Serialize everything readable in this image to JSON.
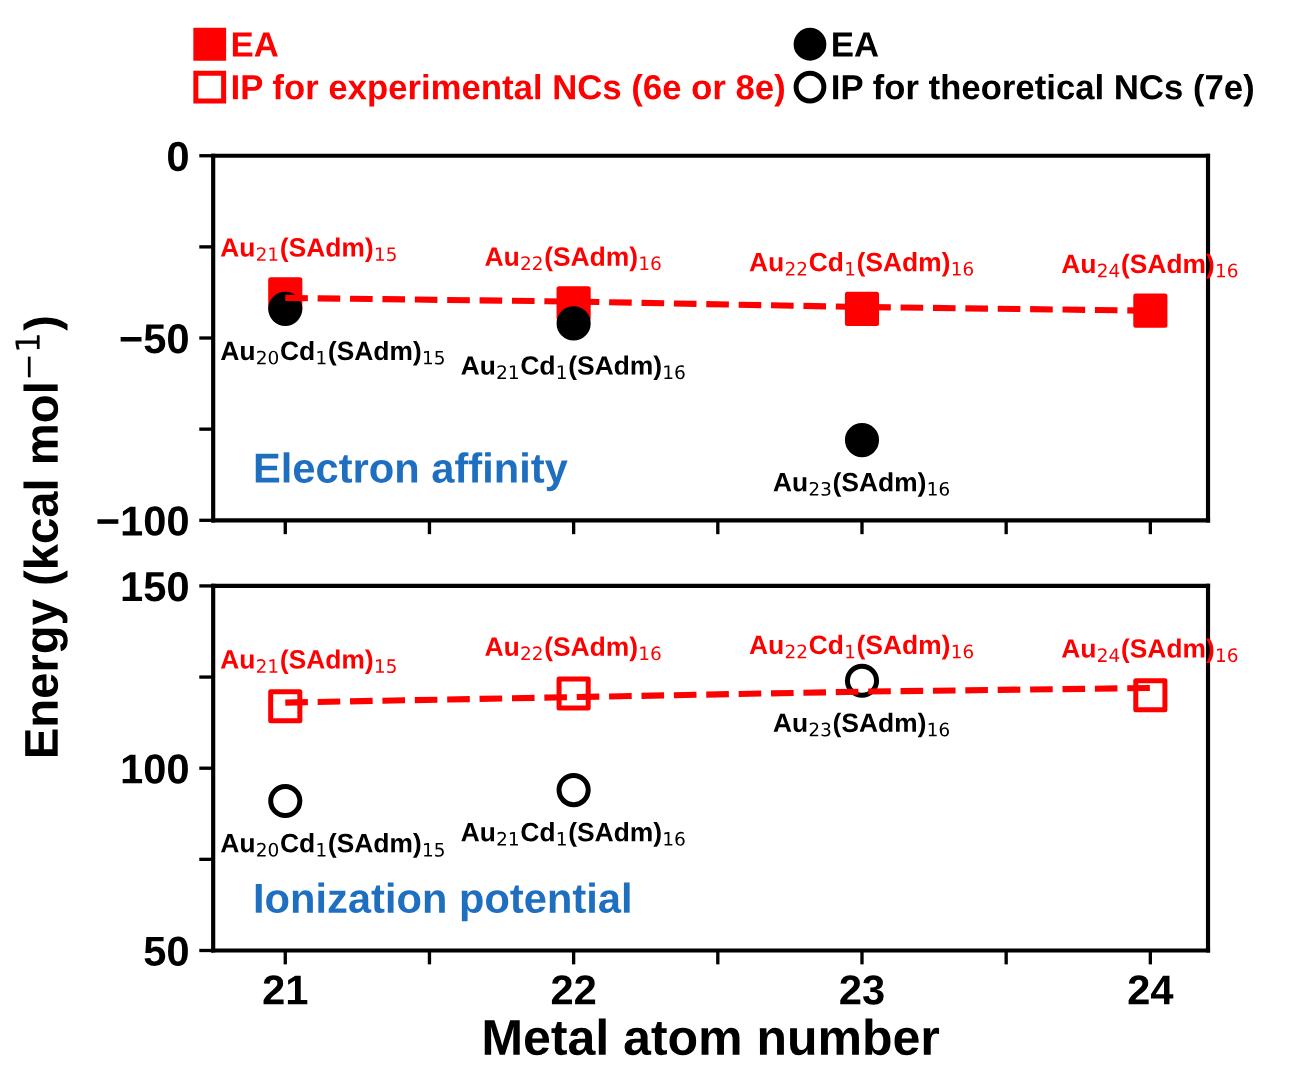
{
  "chart_data": [
    {
      "type": "scatter",
      "ylabel": "Energy (kcal mol$^{−1}$)",
      "x": [
        21,
        22,
        23,
        24
      ],
      "xlim": [
        20.75,
        24.2
      ],
      "xticks": [
        21,
        {
          "value": 21.5,
          "label": null
        },
        22,
        {
          "value": 22.5,
          "label": null
        },
        23,
        {
          "value": 23.5,
          "label": null
        },
        24
      ],
      "ylim": [
        -100,
        0
      ],
      "yticks": [
        -100,
        {
          "value": -75,
          "label": null
        },
        -50,
        {
          "value": -25,
          "label": null
        },
        0
      ],
      "tick_labels": "y",
      "legend": "top",
      "series": [
        {
          "name": "EA",
          "color": "#ff0000",
          "marker": "square",
          "values": [
            -38,
            -40.5,
            -42,
            -42.5
          ],
          "value_labels": [
            "Au$_{21}$(SAdm)$_{15}$",
            "Au$_{22}$(SAdm)$_{16}$",
            "Au$_{22}$Cd$_{1}$(SAdm)$_{16}$",
            "Au$_{24}$(SAdm)$_{16}$"
          ]
        },
        {
          "name": "EA",
          "color": "#000000",
          "marker": "circle",
          "values": [
            -42,
            -46,
            -78,
            null
          ],
          "value_labels": [
            "Au$_{20}$Cd$_{1}$(SAdm)$_{15}$",
            "Au$_{21}$Cd$_{1}$(SAdm)$_{16}$",
            "Au$_{23}$(SAdm)$_{16}$",
            null
          ]
        },
        {
          "type": "line",
          "color": "#ff0000",
          "line_style": "dashed",
          "marker": "none",
          "values": [
            -39,
            -40,
            -41.5,
            -42.5
          ]
        }
      ],
      "annotations": [
        "Electron affinity"
      ]
    },
    {
      "type": "scatter",
      "xlabel": "Metal atom number",
      "x": [
        21,
        22,
        23,
        24
      ],
      "xlim": [
        20.75,
        24.2
      ],
      "xticks": [
        21,
        {
          "value": 21.5,
          "label": null
        },
        22,
        {
          "value": 22.5,
          "label": null
        },
        23,
        {
          "value": 23.5,
          "label": null
        },
        24
      ],
      "ylim": [
        50,
        150
      ],
      "yticks": [
        50,
        {
          "value": 75,
          "label": null
        },
        100,
        {
          "value": 125,
          "label": null
        },
        150
      ],
      "legend": "top",
      "series": [
        {
          "name": "IP for experimental NCs (6e or 8e)",
          "color": "#ff0000",
          "marker": "square",
          "values": [
            117,
            120.5,
            null,
            120
          ],
          "value_labels": [
            "Au$_{21}$(SAdm)$_{15}$",
            "Au$_{22}$(SAdm)$_{16}$",
            "Au$_{22}$Cd$_{1}$(SAdm)$_{16}$",
            "Au$_{24}$(SAdm)$_{16}$"
          ]
        },
        {
          "name": "IP for theoretical NCs (7e)",
          "color": "#000000",
          "marker": "circle",
          "values": [
            91,
            94,
            124,
            null
          ],
          "value_labels": [
            "Au$_{20}$Cd$_{1}$(SAdm)$_{15}$",
            "Au$_{21}$Cd$_{1}$(SAdm)$_{16}$",
            "Au$_{23}$(SAdm)$_{16}$",
            null
          ]
        },
        {
          "type": "line",
          "color": "#ff0000",
          "line_style": "dashed",
          "marker": "none",
          "values": [
            118,
            119.5,
            121,
            122
          ]
        }
      ],
      "annotations": [
        "Ionization potential"
      ]
    }
  ]
}
